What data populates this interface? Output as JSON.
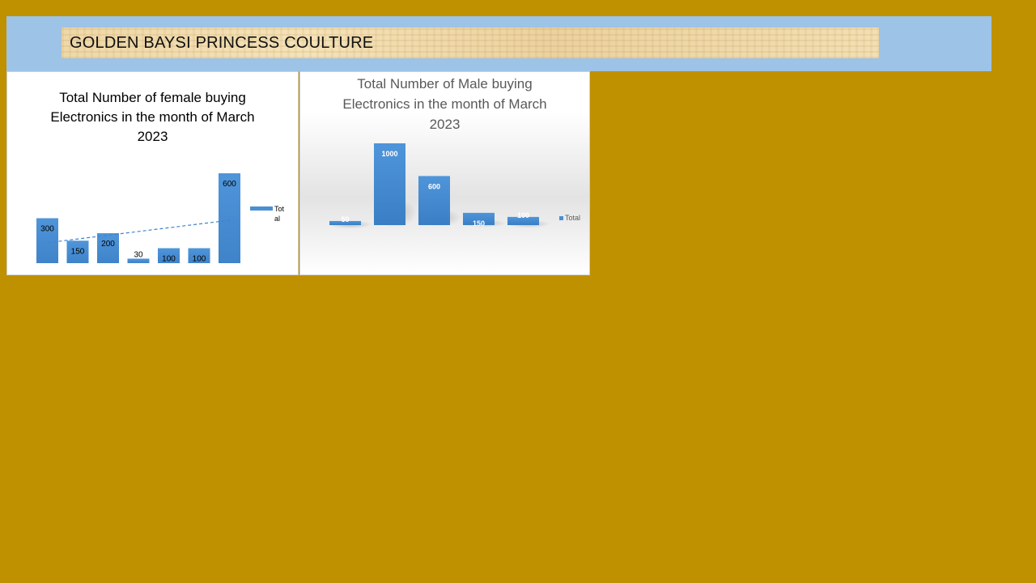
{
  "header": {
    "title": "GOLDEN BAYSI PRINCESS COULTURE"
  },
  "chart_data": [
    {
      "type": "bar",
      "title": "Total Number of female buying\nElectronics in the month of March\n2023",
      "categories": [
        "",
        "",
        "",
        "",
        "",
        "",
        ""
      ],
      "series": [
        {
          "name": "Total",
          "values": [
            300,
            150,
            200,
            30,
            100,
            100,
            600
          ]
        }
      ],
      "ylim": [
        0,
        600
      ],
      "trendline": "linear, dashed",
      "legend": "right",
      "grid": false,
      "color": "#4a8fd4"
    },
    {
      "type": "bar",
      "title": "Total Number of Male buying\nElectronics in the month of March\n2023",
      "categories": [
        "",
        "",
        "",
        "",
        ""
      ],
      "series": [
        {
          "name": "Total",
          "values": [
            50,
            1000,
            600,
            150,
            100
          ]
        }
      ],
      "ylim": [
        0,
        1000
      ],
      "legend": "right",
      "grid": false,
      "color": "#4a8fd4"
    }
  ]
}
